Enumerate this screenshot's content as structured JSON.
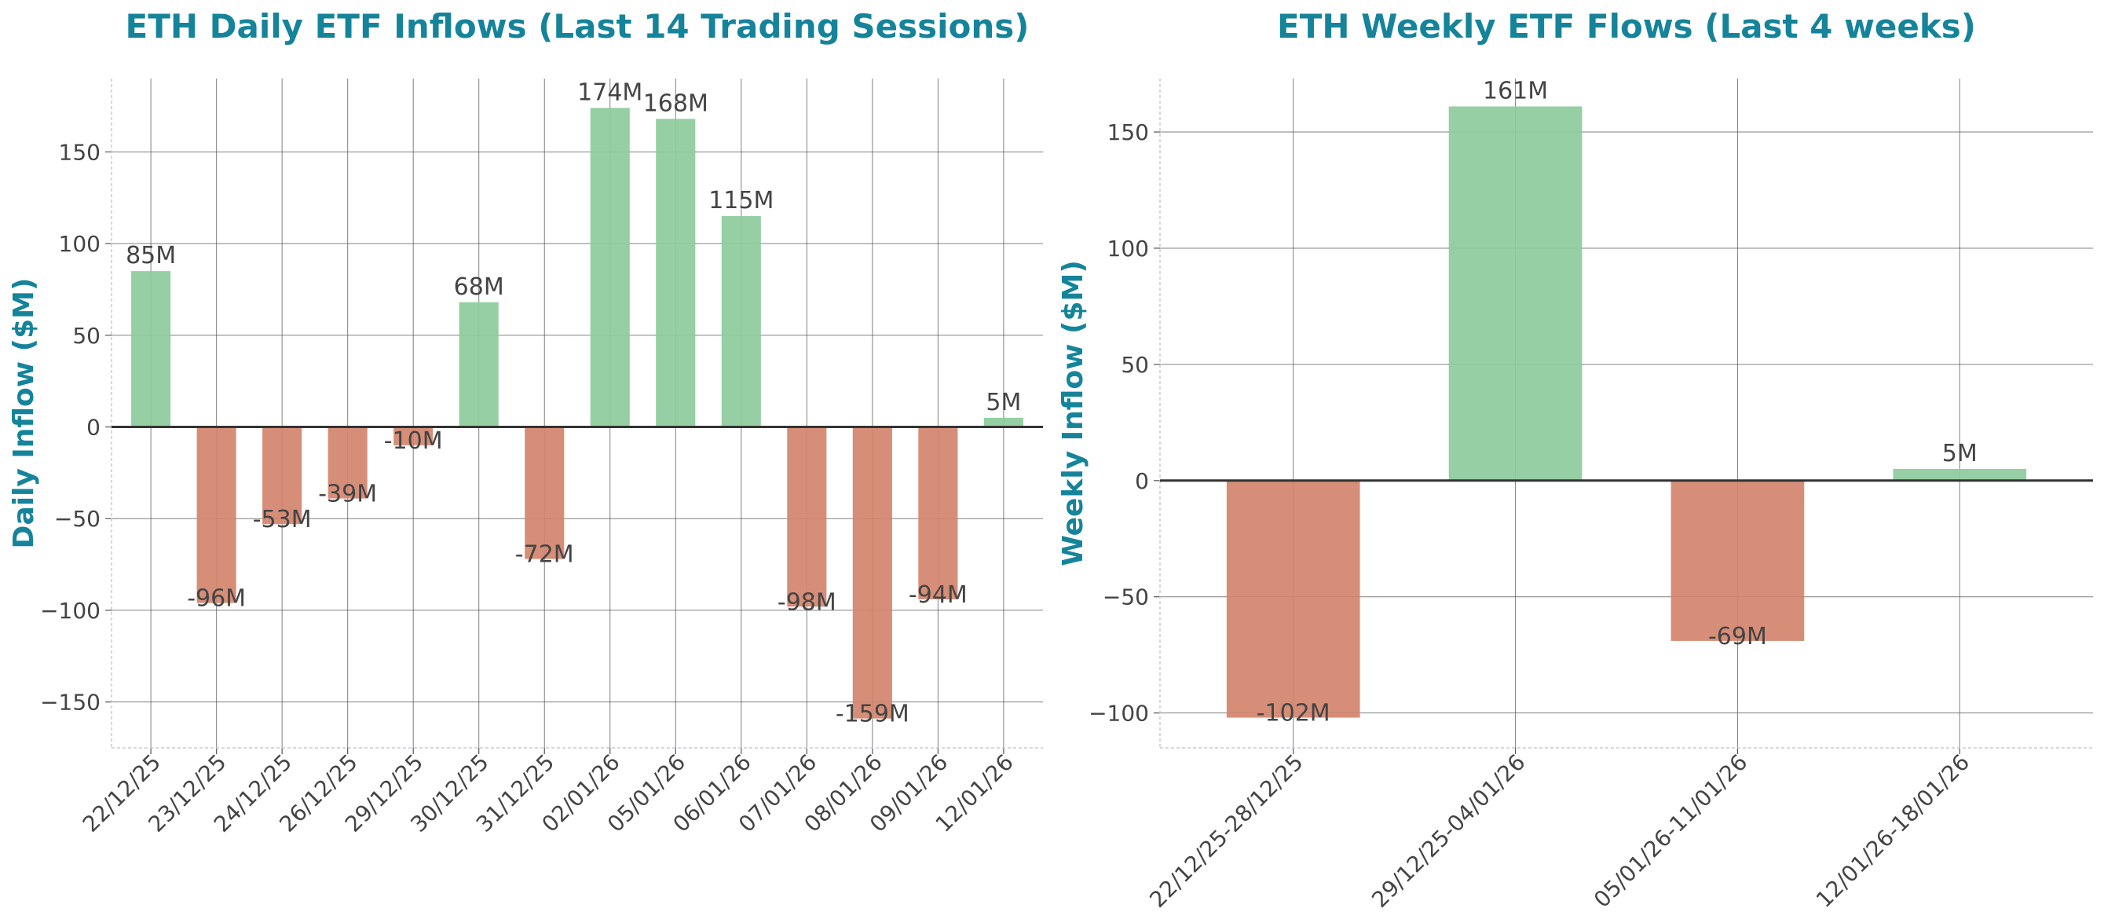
{
  "colors": {
    "title": "#15849a",
    "positive": "#8ccb9b",
    "negative": "#d3846d",
    "grid": "#555555",
    "zero": "#333333",
    "tick_text": "#444444",
    "label_text": "#444444"
  },
  "chart_data": [
    {
      "type": "bar",
      "title": "ETH Daily ETF Inflows (Last 14 Trading Sessions)",
      "xlabel": "",
      "ylabel": "Daily Inflow ($M)",
      "ylim": [
        -175,
        190
      ],
      "yticks": [
        -150,
        -100,
        -50,
        0,
        50,
        100,
        150
      ],
      "ytick_labels": [
        "−150",
        "−100",
        "−50",
        "0",
        "50",
        "100",
        "150"
      ],
      "grid": true,
      "categories": [
        "22/12/25",
        "23/12/25",
        "24/12/25",
        "26/12/25",
        "29/12/25",
        "30/12/25",
        "31/12/25",
        "02/01/26",
        "05/01/26",
        "06/01/26",
        "07/01/26",
        "08/01/26",
        "09/01/26",
        "12/01/26"
      ],
      "values": [
        85,
        -96,
        -53,
        -39,
        -10,
        68,
        -72,
        174,
        168,
        115,
        -98,
        -159,
        -94,
        5
      ],
      "data_labels": [
        "85M",
        "-96M",
        "-53M",
        "-39M",
        "-10M",
        "68M",
        "-72M",
        "174M",
        "168M",
        "115M",
        "-98M",
        "-159M",
        "-94M",
        "5M"
      ]
    },
    {
      "type": "bar",
      "title": "ETH Weekly ETF Flows (Last 4 weeks)",
      "xlabel": "",
      "ylabel": "Weekly Inflow ($M)",
      "ylim": [
        -115,
        173
      ],
      "yticks": [
        -100,
        -50,
        0,
        50,
        100,
        150
      ],
      "ytick_labels": [
        "−100",
        "−50",
        "0",
        "50",
        "100",
        "150"
      ],
      "grid": true,
      "categories": [
        "22/12/25-28/12/25",
        "29/12/25-04/01/26",
        "05/01/26-11/01/26",
        "12/01/26-18/01/26"
      ],
      "values": [
        -102,
        161,
        -69,
        5
      ],
      "data_labels": [
        "-102M",
        "161M",
        "-69M",
        "5M"
      ]
    }
  ]
}
